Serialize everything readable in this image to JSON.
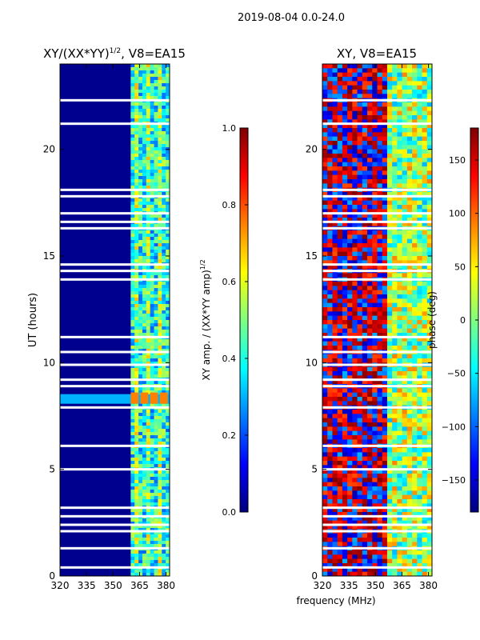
{
  "page_title": "2019-08-04 0.0-24.0",
  "chart_data": [
    {
      "type": "heatmap",
      "title_base": "XY/(XX*YY)",
      "title_exp": "1/2",
      "title_suffix": ", V8=EA15",
      "xlabel": "",
      "ylabel": "UT (hours)",
      "xlim": [
        320,
        382
      ],
      "ylim": [
        0,
        24
      ],
      "xticks": [
        320,
        335,
        350,
        365,
        380
      ],
      "yticks": [
        0,
        5,
        10,
        15,
        20
      ],
      "colorbar": {
        "label_base": "XY amp. / (XX*YY amp)",
        "label_exp": "1/2",
        "range": [
          0.0,
          1.0
        ],
        "ticks": [
          "0.0",
          "0.2",
          "0.4",
          "0.6",
          "0.8",
          "1.0"
        ]
      },
      "active_band_mhz": [
        360,
        382
      ],
      "data_gap_hours": [
        22.3,
        21.2,
        18.1,
        17.8,
        17.0,
        16.6,
        16.3,
        14.6,
        14.3,
        13.9,
        11.2,
        10.5,
        9.9,
        9.2,
        8.9,
        7.9,
        6.1,
        5.0,
        3.2,
        2.8,
        2.4,
        2.1,
        1.3,
        0.4
      ]
    },
    {
      "type": "heatmap",
      "title": "XY, V8=EA15",
      "xlabel": "frequency (MHz)",
      "ylabel": "",
      "xlim": [
        320,
        382
      ],
      "ylim": [
        0,
        24
      ],
      "xticks": [
        320,
        335,
        350,
        365,
        380
      ],
      "yticks": [
        0,
        5,
        10,
        15,
        20
      ],
      "colorbar": {
        "label": "phase (deg)",
        "range": [
          -180,
          180
        ],
        "ticks": [
          "−150",
          "−100",
          "−50",
          "0",
          "50",
          "100",
          "150"
        ]
      },
      "data_gap_hours": [
        22.3,
        21.2,
        18.1,
        17.8,
        17.0,
        16.6,
        16.3,
        14.6,
        14.3,
        13.9,
        11.2,
        10.5,
        9.9,
        9.2,
        8.9,
        7.9,
        6.1,
        5.0,
        3.2,
        2.8,
        2.4,
        2.1,
        1.3,
        0.4
      ]
    }
  ]
}
